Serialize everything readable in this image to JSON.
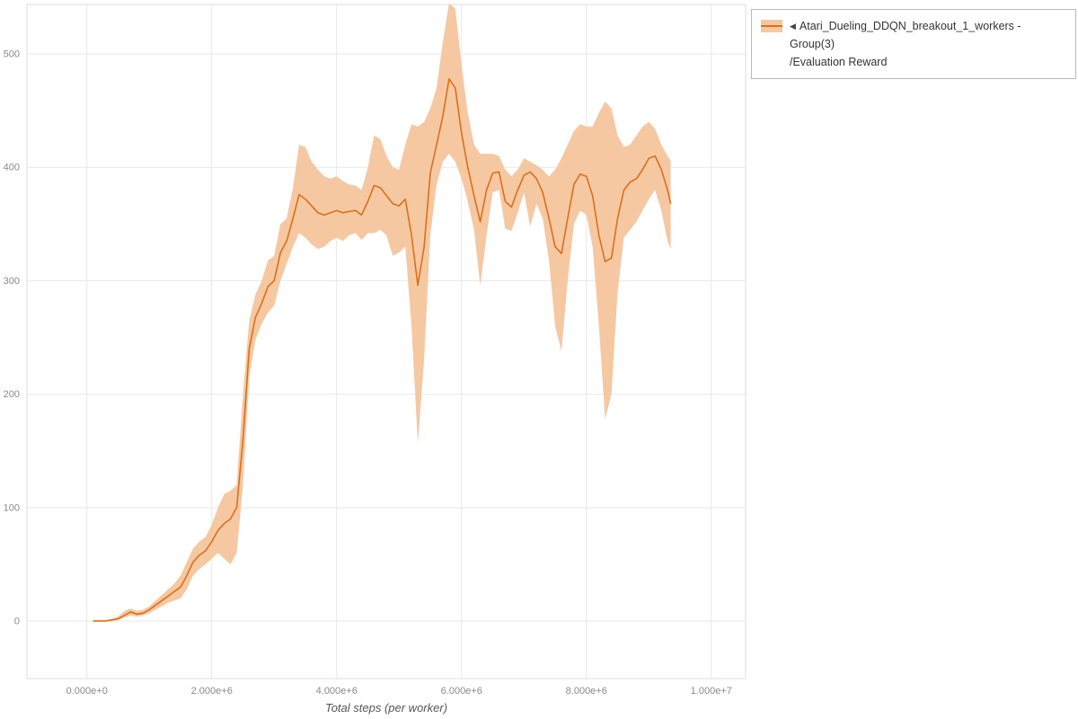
{
  "legend": {
    "arrow": "◀",
    "line1": "Atari_Dueling_DDQN_breakout_1_workers - Group(3)",
    "line2": "/Evaluation Reward"
  },
  "chart_data": {
    "type": "line",
    "title": "",
    "xlabel": "Total steps (per worker)",
    "ylabel": "",
    "grid": true,
    "legend_position": "top-right",
    "legend_label": "Atari_Dueling_DDQN_breakout_1_workers - Group(3)/Evaluation Reward",
    "xlim": [
      -960000,
      10550000
    ],
    "ylim": [
      -50.7,
      543.6
    ],
    "x_unit": 1000000,
    "x_ticks": [
      {
        "value": 0,
        "label": "0.000e+0"
      },
      {
        "value": 2000000,
        "label": "2.000e+6"
      },
      {
        "value": 4000000,
        "label": "4.000e+6"
      },
      {
        "value": 6000000,
        "label": "6.000e+6"
      },
      {
        "value": 8000000,
        "label": "8.000e+6"
      },
      {
        "value": 10000000,
        "label": "1.000e+7"
      }
    ],
    "y_ticks": [
      {
        "value": 0,
        "label": "0"
      },
      {
        "value": 100,
        "label": "100"
      },
      {
        "value": 200,
        "label": "200"
      },
      {
        "value": 300,
        "label": "300"
      },
      {
        "value": 400,
        "label": "400"
      },
      {
        "value": 500,
        "label": "500"
      }
    ],
    "series": [
      {
        "name": "Atari_Dueling_DDQN_breakout_1_workers - Group(3)/Evaluation Reward",
        "color": "#dd6f1a",
        "band_color": "#f5c8a2",
        "x": [
          0.1,
          0.2,
          0.3,
          0.4,
          0.5,
          0.6,
          0.7,
          0.8,
          0.9,
          1.0,
          1.1,
          1.2,
          1.3,
          1.4,
          1.5,
          1.6,
          1.7,
          1.8,
          1.9,
          2.0,
          2.1,
          2.2,
          2.3,
          2.4,
          2.5,
          2.6,
          2.7,
          2.8,
          2.9,
          3.0,
          3.1,
          3.2,
          3.3,
          3.4,
          3.5,
          3.6,
          3.7,
          3.8,
          3.9,
          4.0,
          4.1,
          4.2,
          4.3,
          4.4,
          4.5,
          4.6,
          4.7,
          4.8,
          4.9,
          5.0,
          5.1,
          5.2,
          5.3,
          5.4,
          5.5,
          5.6,
          5.7,
          5.8,
          5.9,
          6.0,
          6.1,
          6.2,
          6.3,
          6.4,
          6.5,
          6.6,
          6.7,
          6.8,
          6.9,
          7.0,
          7.1,
          7.2,
          7.3,
          7.4,
          7.5,
          7.6,
          7.7,
          7.8,
          7.9,
          8.0,
          8.1,
          8.2,
          8.3,
          8.4,
          8.5,
          8.6,
          8.7,
          8.8,
          8.9,
          9.0,
          9.1,
          9.2,
          9.3,
          9.35
        ],
        "mean": [
          0,
          0,
          0,
          1,
          2,
          5,
          8,
          6,
          7,
          10,
          14,
          18,
          22,
          26,
          30,
          40,
          52,
          58,
          62,
          70,
          80,
          86,
          90,
          100,
          160,
          240,
          268,
          280,
          295,
          300,
          325,
          335,
          355,
          376,
          372,
          366,
          360,
          358,
          360,
          362,
          360,
          361,
          362,
          358,
          370,
          384,
          382,
          375,
          368,
          366,
          372,
          340,
          296,
          330,
          395,
          420,
          445,
          478,
          470,
          430,
          400,
          375,
          352,
          380,
          395,
          396,
          370,
          365,
          380,
          393,
          396,
          390,
          378,
          355,
          330,
          324,
          355,
          385,
          394,
          392,
          375,
          340,
          317,
          320,
          355,
          380,
          387,
          390,
          398,
          408,
          410,
          398,
          380,
          368
        ],
        "low": [
          0,
          0,
          0,
          0,
          1,
          3,
          5,
          4,
          5,
          7,
          10,
          13,
          16,
          18,
          20,
          28,
          40,
          46,
          50,
          55,
          60,
          55,
          50,
          60,
          120,
          215,
          248,
          262,
          272,
          278,
          300,
          315,
          330,
          342,
          338,
          332,
          328,
          330,
          335,
          338,
          335,
          340,
          342,
          336,
          342,
          342,
          345,
          340,
          322,
          325,
          330,
          260,
          157,
          230,
          340,
          385,
          405,
          412,
          405,
          390,
          370,
          345,
          296,
          340,
          378,
          380,
          346,
          344,
          360,
          378,
          348,
          368,
          355,
          318,
          260,
          238,
          300,
          350,
          362,
          358,
          330,
          260,
          178,
          200,
          290,
          338,
          345,
          352,
          362,
          372,
          380,
          362,
          335,
          328
        ],
        "high": [
          1,
          1,
          1,
          2,
          4,
          9,
          11,
          9,
          10,
          13,
          18,
          23,
          28,
          33,
          40,
          52,
          64,
          70,
          74,
          85,
          100,
          112,
          115,
          120,
          200,
          265,
          288,
          300,
          318,
          322,
          350,
          355,
          382,
          420,
          418,
          405,
          398,
          392,
          390,
          392,
          388,
          385,
          384,
          380,
          400,
          428,
          425,
          410,
          400,
          398,
          420,
          438,
          436,
          440,
          452,
          470,
          510,
          545,
          540,
          490,
          448,
          420,
          412,
          412,
          412,
          410,
          398,
          392,
          398,
          408,
          405,
          402,
          398,
          392,
          398,
          408,
          420,
          432,
          438,
          436,
          436,
          448,
          458,
          452,
          428,
          418,
          420,
          428,
          436,
          440,
          434,
          420,
          410,
          406
        ]
      }
    ]
  }
}
